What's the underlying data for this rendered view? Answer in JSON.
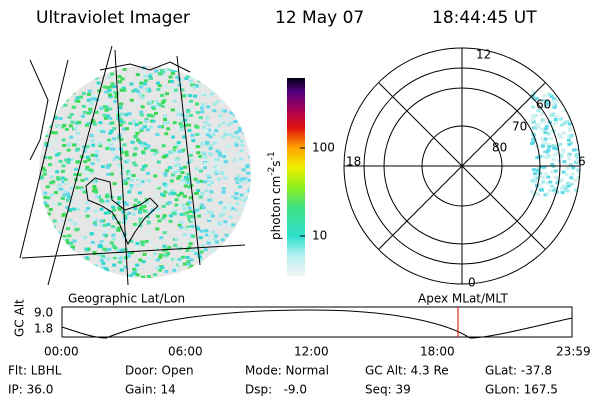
{
  "header": {
    "title": "Ultraviolet Imager",
    "date": "12 May 07",
    "time": "18:44:45 UT"
  },
  "colorbar": {
    "ticks": [
      "100",
      "10"
    ],
    "unit": {
      "base": "photon cm",
      "exp1": "-2",
      "s": "s",
      "exp2": "-1"
    }
  },
  "polar": {
    "mlt": [
      "12",
      "18",
      "6",
      "0"
    ],
    "mlat": [
      "60",
      "70",
      "80"
    ]
  },
  "captions": {
    "left": "Geographic Lat/Lon",
    "right": "Apex MLat/MLT"
  },
  "orbit": {
    "ylabel": "GC Alt",
    "yticks": [
      "9.0",
      "1.8"
    ],
    "xticks": [
      "00:00",
      "06:00",
      "12:00",
      "18:00",
      "23:59"
    ]
  },
  "info": {
    "rows": [
      [
        "Flt: LBHL",
        "Door: Open",
        "Mode: Normal",
        "GC Alt: 4.3 Re",
        "GLat: -37.8"
      ],
      [
        "IP: 36.0",
        "Gain: 14",
        "Dsp:   -9.0",
        "Seq: 39",
        "GLon: 167.5"
      ]
    ]
  }
}
